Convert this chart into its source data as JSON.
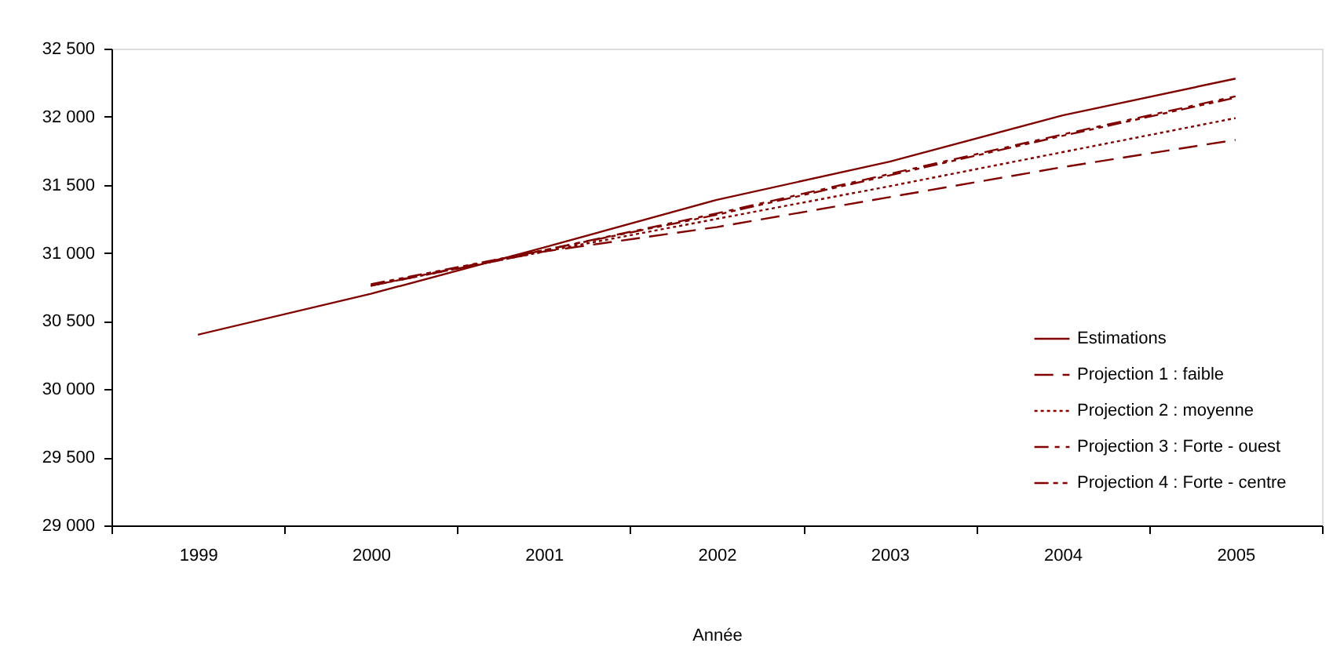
{
  "chart_data": {
    "type": "line",
    "xlabel": "Année",
    "categories": [
      "1999",
      "2000",
      "2001",
      "2002",
      "2003",
      "2004",
      "2005"
    ],
    "ylim": [
      29000,
      32500
    ],
    "yticks": [
      {
        "value": 29000,
        "label": "29 000"
      },
      {
        "value": 29500,
        "label": "29 500"
      },
      {
        "value": 30000,
        "label": "30 000"
      },
      {
        "value": 30500,
        "label": "30 500"
      },
      {
        "value": 31000,
        "label": "31 000"
      },
      {
        "value": 31500,
        "label": "31 500"
      },
      {
        "value": 32000,
        "label": "32 000"
      },
      {
        "value": 32500,
        "label": "32 500"
      }
    ],
    "grid": false,
    "legend": "bottom right",
    "marker": "none",
    "series": [
      {
        "name": "Estimations",
        "color": "#800000",
        "line_style": "solid",
        "values": [
          30400,
          30700,
          31040,
          31390,
          31670,
          32010,
          32280
        ]
      },
      {
        "name": "Projection 1 : faible",
        "color": "#800000",
        "line_style": "dashed",
        "values": [
          null,
          30760,
          31010,
          31190,
          31410,
          31630,
          31830
        ]
      },
      {
        "name": "Projection 2 : moyenne",
        "color": "#800000",
        "line_style": "dotted",
        "values": [
          null,
          30760,
          31010,
          31250,
          31490,
          31740,
          31990
        ]
      },
      {
        "name": "Projection 3 : Forte - ouest",
        "color": "#800000",
        "line_style": "dashed",
        "values": [
          null,
          30760,
          31020,
          31290,
          31580,
          31870,
          32150
        ]
      },
      {
        "name": "Projection 4 : Forte - centre",
        "color": "#800000",
        "line_style": "dashed",
        "values": [
          null,
          30770,
          31020,
          31280,
          31570,
          31860,
          32140
        ]
      }
    ]
  }
}
